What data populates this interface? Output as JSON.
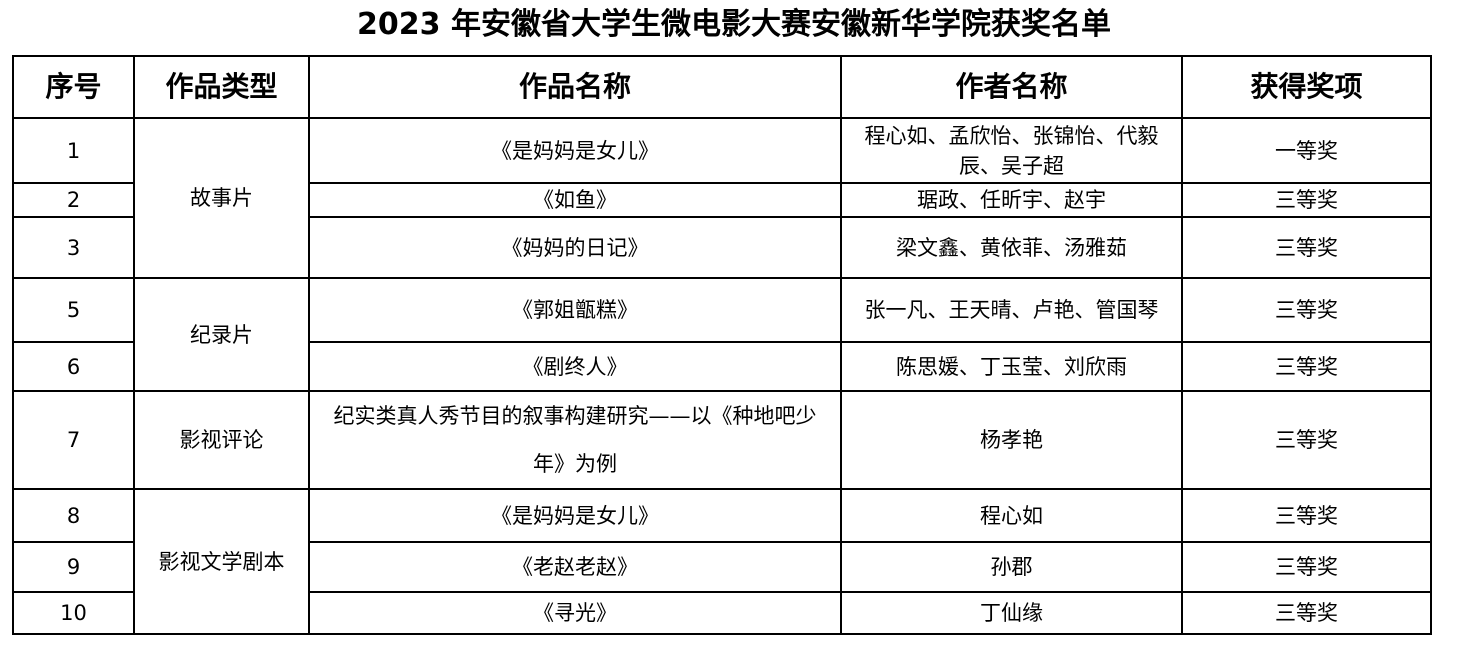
{
  "title": "2023 年安徽省大学生微电影大赛安徽新华学院获奖名单",
  "headers": [
    "序号",
    "作品类型",
    "作品名称",
    "作者名称",
    "获得奖项"
  ],
  "categories": [
    "故事片",
    "纪录片",
    "影视评论",
    "影视文学剧本"
  ],
  "rows": [
    {
      "no": "1",
      "work": "《是妈妈是女儿》",
      "authors": "程心如、孟欣怡、张锦怡、代毅辰、吴子超",
      "award": "一等奖"
    },
    {
      "no": "2",
      "work": "《如鱼》",
      "authors": "琚政、任昕宇、赵宇",
      "award": "三等奖"
    },
    {
      "no": "3",
      "work": "《妈妈的日记》",
      "authors": "梁文鑫、黄依菲、汤雅茹",
      "award": "三等奖"
    },
    {
      "no": "5",
      "work": "《郭姐甑糕》",
      "authors": "张一凡、王天晴、卢艳、管国琴",
      "award": "三等奖"
    },
    {
      "no": "6",
      "work": "《剧终人》",
      "authors": "陈思媛、丁玉莹、刘欣雨",
      "award": "三等奖"
    },
    {
      "no": "7",
      "work": "纪实类真人秀节目的叙事构建研究——以《种地吧少年》为例",
      "authors": "杨孝艳",
      "award": "三等奖"
    },
    {
      "no": "8",
      "work": "《是妈妈是女儿》",
      "authors": "程心如",
      "award": "三等奖"
    },
    {
      "no": "9",
      "work": "《老赵老赵》",
      "authors": "孙郡",
      "award": "三等奖"
    },
    {
      "no": "10",
      "work": "《寻光》",
      "authors": "丁仙缘",
      "award": "三等奖"
    }
  ]
}
